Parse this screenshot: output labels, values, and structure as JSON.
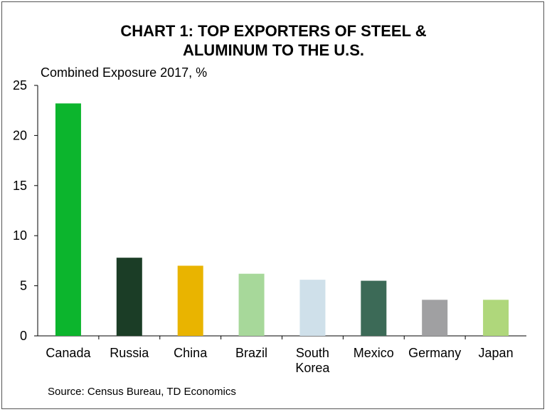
{
  "chart_data": {
    "type": "bar",
    "title_lines": [
      "CHART 1: TOP EXPORTERS OF STEEL &",
      "ALUMINUM TO THE U.S."
    ],
    "ylabel": "Combined Exposure 2017, %",
    "xlabel": "",
    "categories": [
      [
        "Canada"
      ],
      [
        "Russia"
      ],
      [
        "China"
      ],
      [
        "Brazil"
      ],
      [
        "South",
        "Korea"
      ],
      [
        "Mexico"
      ],
      [
        "Germany"
      ],
      [
        "Japan"
      ]
    ],
    "values": [
      23.2,
      7.8,
      7.0,
      6.2,
      5.6,
      5.5,
      3.6,
      3.6
    ],
    "colors": [
      "#0cb52d",
      "#1b3d26",
      "#e9b400",
      "#a7d89a",
      "#cfe0ea",
      "#3c6a57",
      "#a0a0a2",
      "#afd77b"
    ],
    "ylim": [
      0,
      25
    ],
    "yticks": [
      0,
      5,
      10,
      15,
      20,
      25
    ],
    "grid": false,
    "source": "Source: Census Bureau, TD Economics"
  }
}
